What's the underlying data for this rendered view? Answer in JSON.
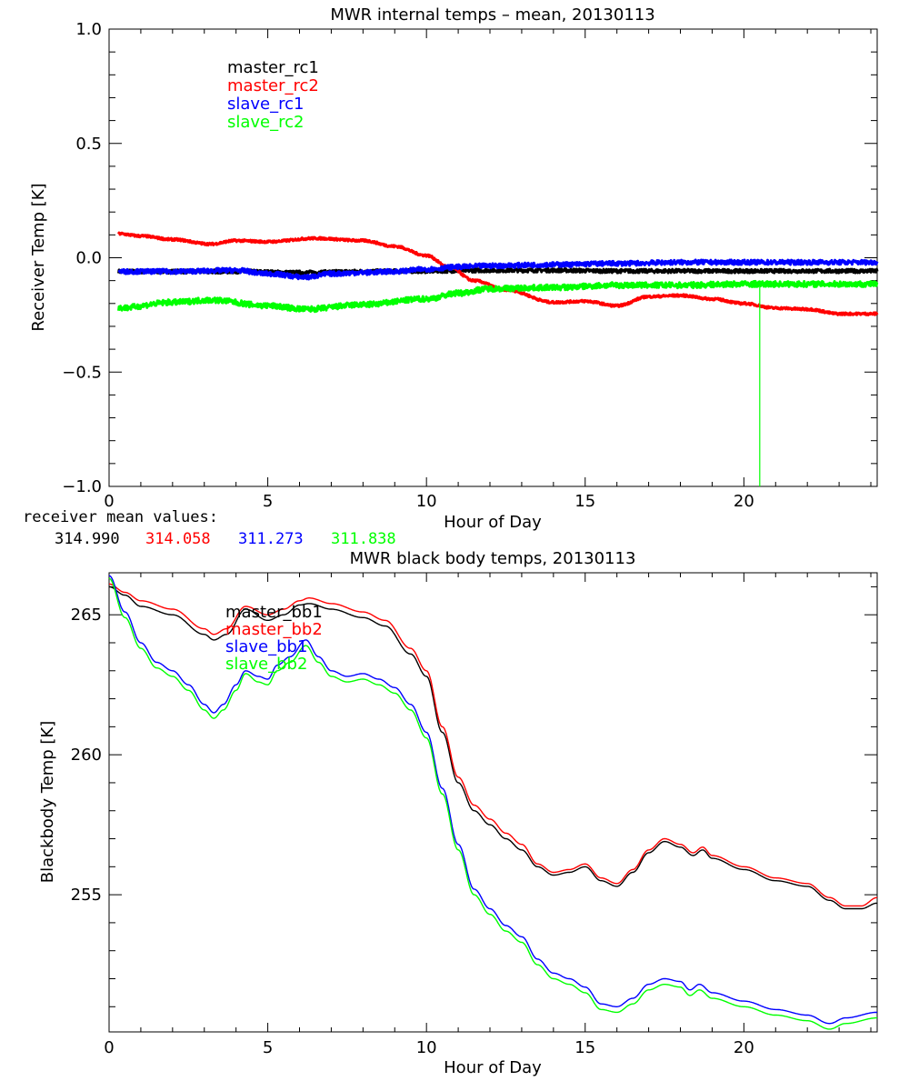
{
  "colors": {
    "black": "#000000",
    "red": "#ff0000",
    "blue": "#0000ff",
    "green": "#00ff00"
  },
  "receiver_summary": {
    "label": "receiver mean values:",
    "values": [
      {
        "text": "314.990",
        "color": "#000000"
      },
      {
        "text": "314.058",
        "color": "#ff0000"
      },
      {
        "text": "311.273",
        "color": "#0000ff"
      },
      {
        "text": "311.838",
        "color": "#00ff00"
      }
    ]
  },
  "chart_data": [
    {
      "type": "line",
      "title": "MWR internal temps – mean, 20130113",
      "xlabel": "Hour of Day",
      "ylabel": "Receiver Temp [K]",
      "xlim": [
        0,
        24.2
      ],
      "ylim": [
        -1.0,
        1.0
      ],
      "xticks": [
        0,
        5,
        10,
        15,
        20
      ],
      "yticks": [
        -1.0,
        -0.5,
        0.0,
        0.5,
        1.0
      ],
      "ytick_labels": [
        "−1.0",
        "−0.5",
        "0.0",
        "0.5",
        "1.0"
      ],
      "legend_position": "top-left",
      "series": [
        {
          "name": "master_rc1",
          "color": "#000000",
          "noise": 0.008,
          "x": [
            0.3,
            2,
            4,
            6,
            8,
            10,
            12,
            14,
            16,
            18,
            20,
            22,
            24.2
          ],
          "y": [
            -0.06,
            -0.06,
            -0.06,
            -0.065,
            -0.06,
            -0.058,
            -0.055,
            -0.055,
            -0.058,
            -0.058,
            -0.058,
            -0.058,
            -0.058
          ]
        },
        {
          "name": "master_rc2",
          "color": "#ff0000",
          "noise": 0.005,
          "x": [
            0.3,
            1,
            2,
            3.2,
            4,
            5,
            6.5,
            8,
            9,
            10,
            10.7,
            11.5,
            12.5,
            14,
            15,
            16,
            17,
            18,
            19,
            20,
            21,
            22,
            23,
            24.2
          ],
          "y": [
            0.105,
            0.095,
            0.08,
            0.06,
            0.075,
            0.07,
            0.085,
            0.075,
            0.05,
            0.01,
            -0.04,
            -0.1,
            -0.14,
            -0.195,
            -0.19,
            -0.21,
            -0.17,
            -0.165,
            -0.18,
            -0.2,
            -0.22,
            -0.225,
            -0.245,
            -0.245
          ]
        },
        {
          "name": "slave_rc1",
          "color": "#0000ff",
          "noise": 0.01,
          "x": [
            0.3,
            2,
            4,
            5,
            6.2,
            7,
            8,
            9,
            10,
            11,
            12,
            14,
            16,
            18,
            20,
            22,
            24.2
          ],
          "y": [
            -0.06,
            -0.06,
            -0.055,
            -0.07,
            -0.085,
            -0.07,
            -0.065,
            -0.06,
            -0.05,
            -0.04,
            -0.035,
            -0.03,
            -0.025,
            -0.02,
            -0.02,
            -0.02,
            -0.02
          ]
        },
        {
          "name": "slave_rc2",
          "color": "#00ff00",
          "noise": 0.012,
          "spike": {
            "x": 20.5,
            "to": -1.0
          },
          "x": [
            0.3,
            2,
            3.2,
            5,
            6.2,
            8,
            10,
            11,
            12,
            14,
            16,
            18,
            20,
            22,
            24.2
          ],
          "y": [
            -0.22,
            -0.195,
            -0.185,
            -0.21,
            -0.225,
            -0.205,
            -0.18,
            -0.155,
            -0.135,
            -0.13,
            -0.12,
            -0.12,
            -0.115,
            -0.115,
            -0.115
          ]
        }
      ]
    },
    {
      "type": "line",
      "title": "MWR black body temps, 20130113",
      "xlabel": "Hour of Day",
      "ylabel": "Blackbody Temp [K]",
      "xlim": [
        0,
        24.2
      ],
      "ylim": [
        250.1,
        266.5
      ],
      "xticks": [
        0,
        5,
        10,
        15,
        20
      ],
      "yticks": [
        255,
        260,
        265
      ],
      "ytick_labels": [
        "255",
        "260",
        "265"
      ],
      "legend_position": "top-left",
      "series": [
        {
          "name": "master_bb1",
          "color": "#000000",
          "x": [
            0,
            0.5,
            1,
            2,
            3,
            3.3,
            3.7,
            4.3,
            5,
            5.5,
            6,
            6.3,
            7,
            8,
            8.7,
            9.5,
            10,
            10.5,
            11,
            11.5,
            12,
            12.5,
            13,
            13.5,
            14,
            14.5,
            15,
            15.5,
            16,
            16.5,
            17,
            17.5,
            18,
            18.4,
            18.7,
            19,
            20,
            21,
            22,
            22.7,
            23.2,
            23.7,
            24.2
          ],
          "y": [
            266.0,
            265.7,
            265.3,
            265.0,
            264.3,
            264.1,
            264.3,
            265.2,
            264.8,
            265.0,
            265.35,
            265.4,
            265.2,
            264.9,
            264.6,
            263.6,
            262.8,
            260.8,
            259.0,
            258.0,
            257.5,
            257.0,
            256.6,
            256.0,
            255.7,
            255.8,
            256.0,
            255.5,
            255.3,
            255.8,
            256.5,
            256.9,
            256.7,
            256.4,
            256.6,
            256.3,
            255.9,
            255.5,
            255.3,
            254.8,
            254.5,
            254.5,
            254.7
          ]
        },
        {
          "name": "master_bb2",
          "color": "#ff0000",
          "x": [
            0,
            0.5,
            1,
            2,
            3,
            3.3,
            3.7,
            4.3,
            5,
            5.5,
            6,
            6.3,
            7,
            8,
            8.7,
            9.5,
            10,
            10.5,
            11,
            11.5,
            12,
            12.5,
            13,
            13.5,
            14,
            14.5,
            15,
            15.5,
            16,
            16.5,
            17,
            17.5,
            18,
            18.4,
            18.7,
            19,
            20,
            21,
            22,
            22.7,
            23.2,
            23.7,
            24.2
          ],
          "y": [
            266.1,
            265.8,
            265.5,
            265.2,
            264.5,
            264.3,
            264.5,
            265.3,
            265.0,
            265.2,
            265.5,
            265.6,
            265.4,
            265.1,
            264.8,
            263.8,
            263.0,
            261.0,
            259.2,
            258.2,
            257.7,
            257.2,
            256.8,
            256.1,
            255.8,
            255.9,
            256.1,
            255.6,
            255.4,
            255.9,
            256.6,
            257.0,
            256.8,
            256.5,
            256.7,
            256.4,
            256.0,
            255.6,
            255.4,
            254.9,
            254.6,
            254.6,
            254.9
          ]
        },
        {
          "name": "slave_bb1",
          "color": "#0000ff",
          "x": [
            0,
            0.5,
            1,
            1.5,
            2,
            2.5,
            3,
            3.3,
            3.6,
            4,
            4.3,
            4.7,
            5,
            5.3,
            5.7,
            6.2,
            6.6,
            7,
            7.5,
            8,
            8.5,
            9,
            9.5,
            10,
            10.5,
            11,
            11.5,
            12,
            12.5,
            13,
            13.5,
            14,
            14.5,
            15,
            15.5,
            16,
            16.5,
            17,
            17.5,
            18,
            18.3,
            18.6,
            19,
            20,
            21,
            22,
            22.7,
            23.2,
            24.2
          ],
          "y": [
            266.4,
            265.1,
            264.0,
            263.3,
            263.0,
            262.5,
            261.8,
            261.5,
            261.8,
            262.5,
            263.0,
            262.8,
            262.7,
            263.2,
            263.5,
            264.1,
            263.5,
            263.0,
            262.8,
            262.9,
            262.7,
            262.4,
            261.8,
            260.8,
            258.8,
            256.8,
            255.2,
            254.5,
            253.9,
            253.5,
            252.7,
            252.2,
            252.0,
            251.7,
            251.1,
            251.0,
            251.3,
            251.8,
            252.0,
            251.9,
            251.6,
            251.8,
            251.5,
            251.2,
            250.9,
            250.7,
            250.4,
            250.6,
            250.8
          ]
        },
        {
          "name": "slave_bb2",
          "color": "#00ff00",
          "x": [
            0,
            0.5,
            1,
            1.5,
            2,
            2.5,
            3,
            3.3,
            3.6,
            4,
            4.3,
            4.7,
            5,
            5.3,
            5.7,
            6.2,
            6.6,
            7,
            7.5,
            8,
            8.5,
            9,
            9.5,
            10,
            10.5,
            11,
            11.5,
            12,
            12.5,
            13,
            13.5,
            14,
            14.5,
            15,
            15.5,
            16,
            16.5,
            17,
            17.5,
            18,
            18.3,
            18.6,
            19,
            20,
            21,
            22,
            22.7,
            23.2,
            24.2
          ],
          "y": [
            266.3,
            264.9,
            263.8,
            263.1,
            262.8,
            262.3,
            261.6,
            261.3,
            261.6,
            262.3,
            262.9,
            262.6,
            262.5,
            263.0,
            263.3,
            263.9,
            263.3,
            262.8,
            262.6,
            262.7,
            262.5,
            262.2,
            261.6,
            260.6,
            258.6,
            256.6,
            255.0,
            254.3,
            253.7,
            253.3,
            252.5,
            252.0,
            251.8,
            251.5,
            250.9,
            250.8,
            251.1,
            251.6,
            251.8,
            251.7,
            251.4,
            251.6,
            251.3,
            251.0,
            250.7,
            250.5,
            250.2,
            250.4,
            250.6
          ]
        }
      ]
    }
  ]
}
